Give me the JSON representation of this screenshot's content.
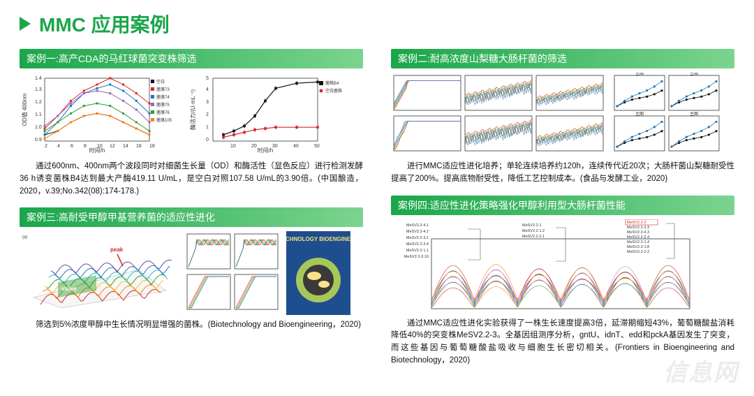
{
  "colors": {
    "primary": "#1aa64a",
    "bar_start": "#1aa64a",
    "bar_end": "#7bd48f",
    "text": "#111111",
    "axis": "#333333",
    "series_black": "#111111",
    "series_red": "#d62728",
    "series_blue": "#1f77b4",
    "series_purple": "#9467bd",
    "series_green": "#2ca02c",
    "series_orange": "#ff7f0e",
    "series_cyan": "#17becf",
    "grid": "#dddddd",
    "biotech_cover_bg": "#1f4e8f",
    "biotech_text": "#f3e07b"
  },
  "title": "MMC 应用案例",
  "cases": {
    "c1": {
      "header": "案例一:高产CDA的马红球菌突变株筛选",
      "caption": "通过600nm、400nm两个波段同时对细菌生长量（OD）和酶活性（显色反应）进行检测发酵36 h诱变菌株B4达到最大产酶419.11  U/mL，是空白对照107.58  U/mL的3.90倍。(中国酿造，2020，v.39;No.342(08):174-178.)",
      "chartA": {
        "xlabel": "时间/h",
        "ylabel": "OD值 400nm",
        "xticks": [
          2,
          4,
          6,
          8,
          10,
          12,
          14,
          16,
          18
        ],
        "yticks": [
          0.9,
          1.0,
          1.1,
          1.2,
          1.3,
          1.4
        ],
        "legend": [
          "空白",
          "菌落73",
          "菌落74",
          "菌落75",
          "菌落76",
          "菌落105"
        ],
        "series": {
          "空白": {
            "x": [
              2,
              4,
              6,
              8,
              10,
              12,
              14,
              16,
              18
            ],
            "y": [
              0.95,
              0.98,
              1.05,
              1.1,
              1.12,
              1.1,
              1.05,
              1.0,
              0.95
            ],
            "color": "#111111"
          },
          "菌落73": {
            "x": [
              2,
              4,
              6,
              8,
              10,
              12,
              14,
              16,
              18
            ],
            "y": [
              1.0,
              1.1,
              1.22,
              1.3,
              1.35,
              1.4,
              1.35,
              1.28,
              1.2
            ],
            "color": "#d62728"
          },
          "菌落74": {
            "x": [
              2,
              4,
              6,
              8,
              10,
              12,
              14,
              16,
              18
            ],
            "y": [
              0.95,
              1.05,
              1.18,
              1.28,
              1.32,
              1.35,
              1.3,
              1.22,
              1.12
            ],
            "color": "#1f77b4"
          },
          "菌落75": {
            "x": [
              2,
              4,
              6,
              8,
              10,
              12,
              14,
              16,
              18
            ],
            "y": [
              1.02,
              1.1,
              1.2,
              1.28,
              1.3,
              1.28,
              1.22,
              1.15,
              1.05
            ],
            "color": "#9467bd"
          },
          "菌落76": {
            "x": [
              2,
              4,
              6,
              8,
              10,
              12,
              14,
              16,
              18
            ],
            "y": [
              0.98,
              1.05,
              1.12,
              1.18,
              1.2,
              1.18,
              1.12,
              1.05,
              0.98
            ],
            "color": "#2ca02c"
          },
          "菌落105": {
            "x": [
              2,
              4,
              6,
              8,
              10,
              12,
              14,
              16,
              18
            ],
            "y": [
              0.92,
              0.98,
              1.05,
              1.1,
              1.12,
              1.1,
              1.05,
              1.0,
              0.95
            ],
            "color": "#ff7f0e"
          }
        }
      },
      "chartB": {
        "xlabel": "时间/h",
        "ylabel": "酶活力/(U·mL⁻¹)",
        "xticks": [
          10,
          20,
          30,
          40,
          50
        ],
        "yticks": [
          0,
          1,
          2,
          3,
          4,
          5
        ],
        "legend": [
          "菌株B4",
          "空白菌株"
        ],
        "series": {
          "菌株B4": {
            "x": [
              5,
              10,
              15,
              20,
              25,
              30,
              40,
              50
            ],
            "y": [
              0.5,
              0.8,
              1.2,
              2.0,
              3.2,
              4.2,
              4.6,
              4.7
            ],
            "color": "#111111"
          },
          "空白菌株": {
            "x": [
              5,
              10,
              15,
              20,
              25,
              30,
              40,
              50
            ],
            "y": [
              0.3,
              0.5,
              0.7,
              0.9,
              1.0,
              1.1,
              1.1,
              1.1
            ],
            "color": "#d62728"
          }
        }
      }
    },
    "c2": {
      "header": "案例二:耐高浓度山梨糖大肠杆菌的筛选",
      "caption": "进行MMC适应性进化培养；单轮连续培养约120h，连续传代近20次；大肠杆菌山梨糖耐受性提高了200%。提高底物耐受性，降低工艺控制成本。(食品与发酵工业，2020)",
      "panel_x_ticks": [
        0,
        4,
        8,
        12,
        16,
        20
      ],
      "panel_y_ticks": [
        0,
        0.5,
        1.0,
        1.5,
        2.0,
        2.5
      ],
      "right_scatter_labels": [
        "主图",
        "主图",
        "主图",
        "主图"
      ]
    },
    "c3": {
      "header": "案例三:高耐受甲醇甲基营养菌的适应性进化",
      "caption": "筛选到5%浓度甲醇中生长情况明显增强的菌株。(Biotechnology and Bioengineering，2020)",
      "labels": {
        "a": "(a)",
        "valley": "valley",
        "peak": "peak",
        "biotech": "BIOTECHNOLOGY BIOENGINEERING"
      }
    },
    "c4": {
      "header": "案例四:适应性进化策略强化甲醇利用型大肠杆菌性能",
      "caption": "通过MMC适应性进化实验获得了一株生长速度提高3倍，延滞期缩短43%，葡萄糖酸盐消耗降低40%的突变株MeSV2.2-3。全基因组测序分析，gntU、idnT、edd和pckA基因发生了突变，而这些基因与葡萄糖酸盐吸收与细胞生长密切相关。(Frontiers in Bioengineering and Biotechnology，2020)",
      "strain_labels_left": [
        "MeSV2.2-4.1",
        "MeSV2.2-4.2",
        "MeSV2.2-3.1",
        "MeSV2.2-3.4",
        "MeSV2.2-1.1",
        "MeSV2.2-3.10"
      ],
      "strain_labels_mid": [
        "MeSV2.2-1",
        "MeSV2.2-1.2",
        "MeSV2.2-2.1"
      ],
      "strain_labels_right": [
        "MeSV2.2-2",
        "MeSV2.2-2.3",
        "MeSV2.2-4.3",
        "MeSV2.2-2.4",
        "MeSV2.2-1.4",
        "MeSV2.2-1.8",
        "MeSV2.2-2.2"
      ]
    }
  },
  "watermark": "信息网"
}
